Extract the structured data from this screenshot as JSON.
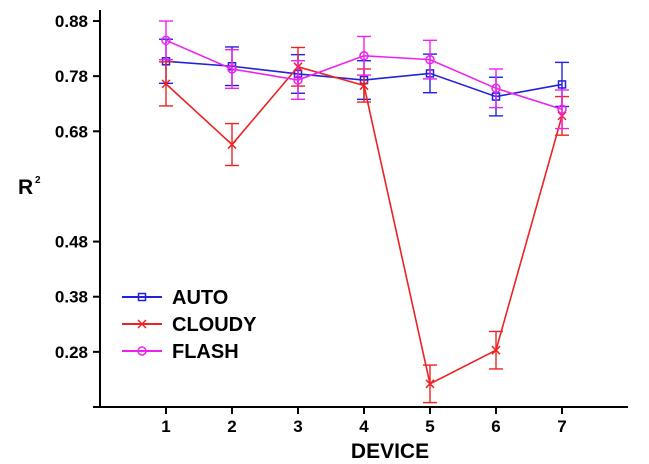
{
  "chart_data": {
    "type": "line",
    "x": [
      1,
      2,
      3,
      4,
      5,
      6,
      7
    ],
    "xlabel": "DEVICE",
    "ylabel": "R",
    "ylabel_sup": "2",
    "xlim": [
      0,
      8
    ],
    "ylim": [
      0.18,
      0.9
    ],
    "yticks": [
      0.88,
      0.78,
      0.68,
      0.48,
      0.38,
      0.28
    ],
    "ytick_labels": [
      "0.88",
      "0.78",
      "0.68",
      "0.48",
      "0.38",
      "0.28"
    ],
    "grid": false,
    "legend_position": "bottom-left",
    "series": [
      {
        "name": "AUTO",
        "color": "#2222dd",
        "marker": "square",
        "values": [
          0.807,
          0.798,
          0.784,
          0.773,
          0.785,
          0.743,
          0.765
        ],
        "errors": [
          0.04,
          0.035,
          0.035,
          0.035,
          0.035,
          0.035,
          0.04
        ]
      },
      {
        "name": "CLOUDY",
        "color": "#ee2222",
        "marker": "x",
        "values": [
          0.766,
          0.656,
          0.797,
          0.763,
          0.222,
          0.283,
          0.708
        ],
        "errors": [
          0.04,
          0.038,
          0.035,
          0.03,
          0.034,
          0.034,
          0.035
        ]
      },
      {
        "name": "FLASH",
        "color": "#ee22ee",
        "marker": "circle",
        "values": [
          0.845,
          0.793,
          0.773,
          0.817,
          0.81,
          0.758,
          0.72
        ],
        "errors": [
          0.035,
          0.035,
          0.035,
          0.035,
          0.035,
          0.035,
          0.035
        ]
      }
    ]
  }
}
